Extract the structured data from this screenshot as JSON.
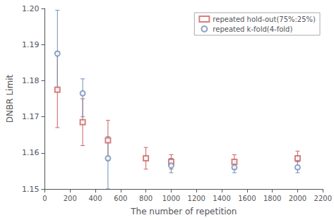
{
  "chart_data": {
    "type": "scatter",
    "xlabel": "The number of repetition",
    "ylabel": "DNBR Limit",
    "xlim": [
      0,
      2200
    ],
    "ylim": [
      1.15,
      1.2
    ],
    "xticks": [
      0,
      200,
      400,
      600,
      800,
      1000,
      1200,
      1400,
      1600,
      1800,
      2000,
      2200
    ],
    "yticks": [
      1.15,
      1.16,
      1.17,
      1.18,
      1.19,
      {
        "value": 1.2,
        "label": "1.20"
      }
    ],
    "grid": false,
    "legend": "upper right",
    "series": [
      {
        "name": "repeated hold-out(75%:25%)",
        "color": "#cd6060",
        "marker": "square",
        "x": [
          100,
          300,
          500,
          800,
          1000,
          1500,
          2000
        ],
        "values": [
          1.1775,
          1.1685,
          1.1635,
          1.1585,
          1.1575,
          1.1575,
          1.1585
        ],
        "yerr_lo": [
          0.0105,
          0.0065,
          0.0055,
          0.003,
          0.002,
          0.002,
          0.002
        ],
        "yerr_hi": [
          0.0105,
          0.0065,
          0.0055,
          0.003,
          0.002,
          0.002,
          0.002
        ]
      },
      {
        "name": "repeated k-fold(4-fold)",
        "color": "#7090b8",
        "marker": "circle",
        "x": [
          100,
          300,
          500,
          1000,
          1500,
          2000
        ],
        "values": [
          1.1875,
          1.1765,
          1.1585,
          1.1565,
          1.156,
          1.156
        ],
        "yerr_lo": [
          0.01,
          0.0065,
          0.0085,
          0.002,
          0.0015,
          0.0015
        ],
        "yerr_hi": [
          0.012,
          0.004,
          0.006,
          0.002,
          0.0015,
          0.0015
        ]
      }
    ]
  }
}
